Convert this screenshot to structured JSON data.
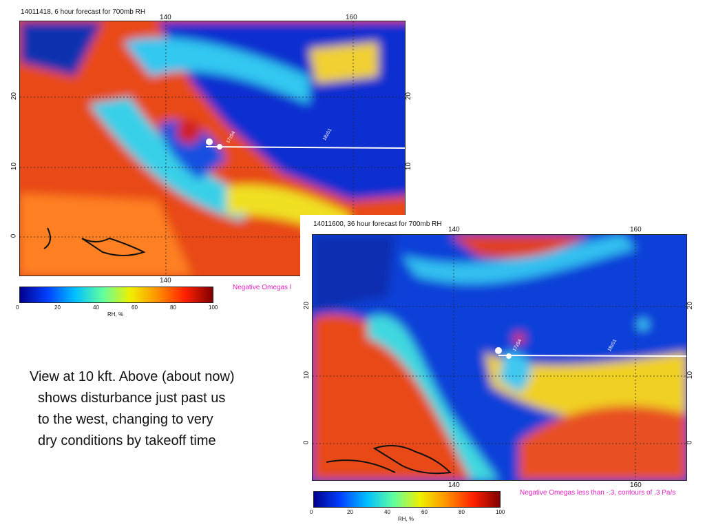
{
  "maps": [
    {
      "title": "14011418, 6 hour forecast for 700mb RH",
      "lon_top": [
        "140",
        "160"
      ],
      "lon_bottom": [
        "140"
      ],
      "lat_left": [
        "20",
        "10",
        "0"
      ],
      "lat_right": [
        "20",
        "10"
      ],
      "track": [
        "17z54",
        "18z01"
      ],
      "colorbar": {
        "ticks": [
          0,
          20,
          40,
          60,
          80,
          100
        ],
        "label": "RH, %"
      },
      "note": "Negative Omegas l"
    },
    {
      "title": "14011600, 36 hour forecast for 700mb RH",
      "lon_top": [
        "140",
        "160"
      ],
      "lon_bottom": [
        "140",
        "160"
      ],
      "lat_left": [
        "20",
        "10",
        "0"
      ],
      "lat_right": [
        "20",
        "10",
        "0"
      ],
      "track": [
        "17z54",
        "18z01"
      ],
      "colorbar": {
        "ticks": [
          0,
          20,
          40,
          60,
          80,
          100
        ],
        "label": "RH, %"
      },
      "note": "Negative Omegas less than -.3, contours of .3 Pa/s"
    }
  ],
  "text": [
    "View at 10 kft.  Above (about now)",
    "shows disturbance just past us",
    "to the west, changing to very",
    "dry conditions by takeoff time"
  ]
}
